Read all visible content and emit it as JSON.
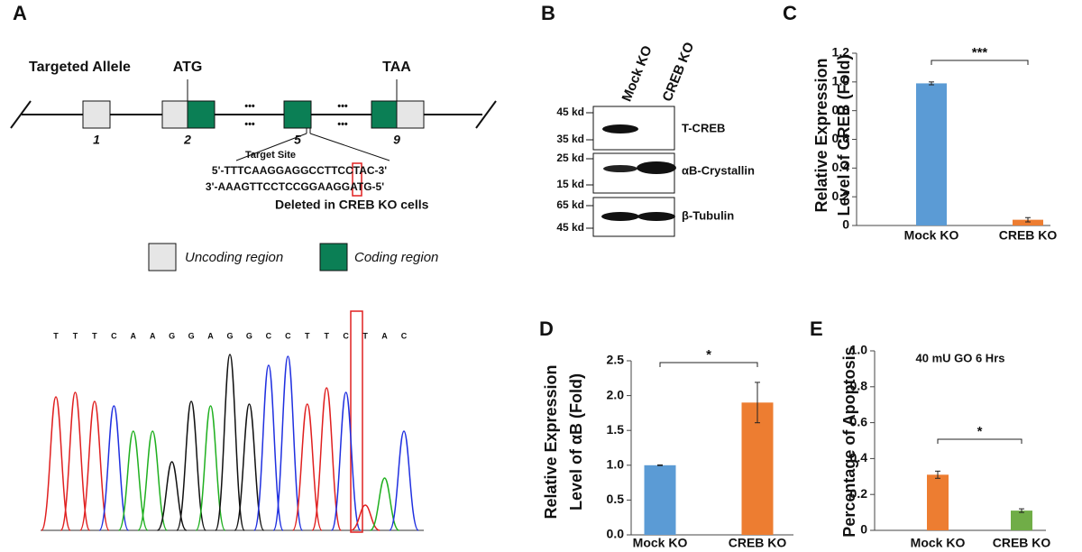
{
  "panel_labels": [
    "A",
    "B",
    "C",
    "D",
    "E"
  ],
  "allele": {
    "title": "Targeted Allele",
    "start_codon": "ATG",
    "stop_codon": "TAA",
    "exons": [
      "1",
      "2",
      "5",
      "9"
    ],
    "dots": "•••",
    "target_site": "Target Site",
    "sense": "5'-TTTCAAGGAGGCCTTCCTAC-3'",
    "antisense": "3'-AAAGTTCCTCCGGAAGGATG-5'",
    "deleted": "Deleted in CREB KO cells",
    "legend": [
      "Uncoding region",
      "Coding region"
    ]
  },
  "chromatogram": {
    "bases": [
      "T",
      "T",
      "T",
      "C",
      "A",
      "A",
      "G",
      "G",
      "A",
      "G",
      "G",
      "C",
      "C",
      "T",
      "T",
      "C",
      "T",
      "A",
      "C"
    ]
  },
  "blot": {
    "lanes": [
      "Mock KO",
      "CREB KO"
    ],
    "markers": [
      "45 kd",
      "35 kd",
      "25 kd",
      "15 kd",
      "65 kd",
      "45 kd"
    ],
    "proteins": [
      "T-CREB",
      "αB-Crystallin",
      "β-Tubulin"
    ]
  },
  "chart_data": [
    {
      "type": "bar",
      "ylabel": [
        "Relative Expression",
        "Level of CREB (Fold)"
      ],
      "categories": [
        "Mock KO",
        "CREB KO"
      ],
      "values": [
        0.99,
        0.04
      ],
      "errors": [
        0.01,
        0.015
      ],
      "colors": [
        "#5b9bd5",
        "#ed7d31"
      ],
      "ylim": [
        0,
        1.2
      ],
      "yticks": [
        0,
        0.2,
        0.4,
        0.6,
        0.8,
        {
          "value": 1,
          "label": "1.0"
        },
        1.2
      ],
      "annotation": "***"
    },
    {
      "type": "bar",
      "ylabel": [
        "Relative Expression",
        "Level of αB (Fold)"
      ],
      "categories": [
        "Mock KO",
        "CREB KO"
      ],
      "values": [
        1.0,
        1.9
      ],
      "errors": [
        0.005,
        0.29
      ],
      "colors": [
        "#5b9bd5",
        "#ed7d31"
      ],
      "ylim": [
        0,
        2.5
      ],
      "yticks": [
        {
          "value": 0,
          "label": "0.0"
        },
        0.5,
        {
          "value": 1,
          "label": "1.0"
        },
        1.5,
        {
          "value": 2,
          "label": "2.0"
        },
        2.5
      ],
      "annotation": "*"
    },
    {
      "type": "bar",
      "title": "40 mU GO 6 Hrs",
      "ylabel": [
        "Percentage of Apoptosis"
      ],
      "categories": [
        "Mock KO",
        "CREB KO"
      ],
      "values": [
        0.31,
        0.11
      ],
      "errors": [
        0.02,
        0.01
      ],
      "colors": [
        "#ed7d31",
        "#70ad47"
      ],
      "ylim": [
        0,
        1.0
      ],
      "yticks": [
        0,
        0.2,
        0.4,
        0.6,
        0.8,
        {
          "value": 1,
          "label": "1.0"
        }
      ],
      "annotation": "*"
    }
  ]
}
